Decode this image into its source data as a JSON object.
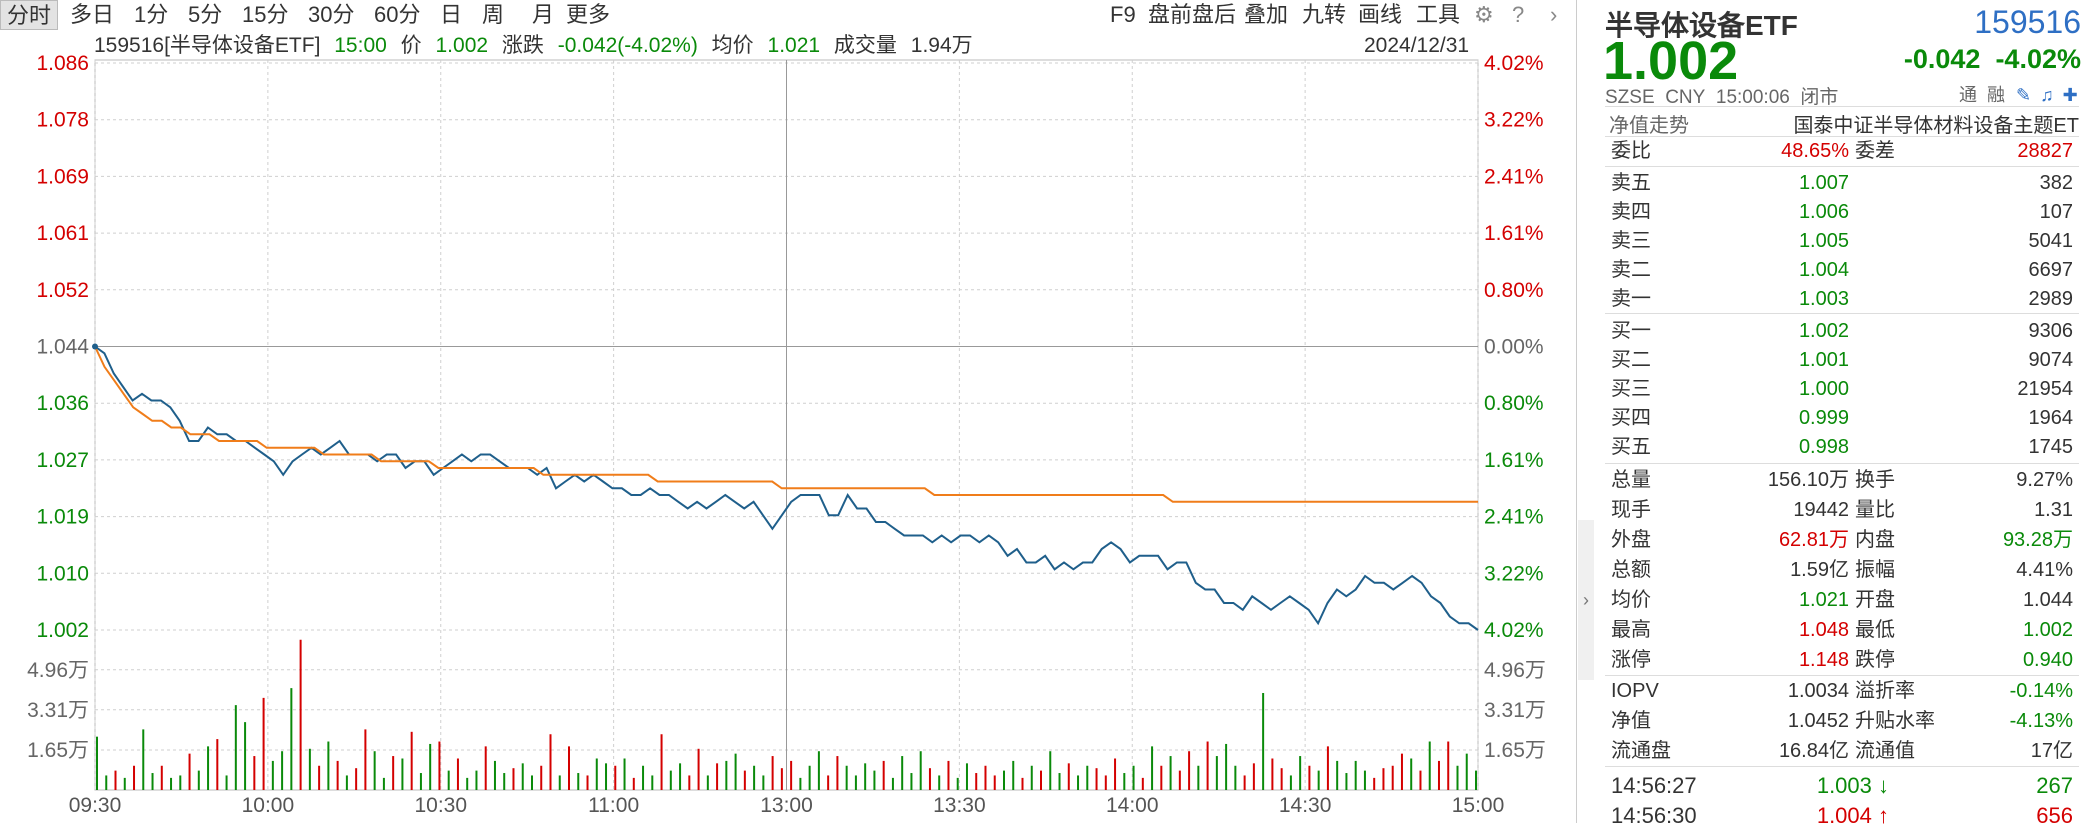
{
  "toolbar": {
    "periods": [
      "分时",
      "多日",
      "1分",
      "5分",
      "15分",
      "30分",
      "60分",
      "日",
      "周",
      "月",
      "更多"
    ],
    "active_period": "分时",
    "right_items": [
      "F9",
      "盘前盘后",
      "叠加",
      "九转",
      "画线",
      "工具"
    ],
    "icons": [
      "gear-icon",
      "help-icon",
      "chevron-right-icon"
    ]
  },
  "info": {
    "code_name": "159516[半导体设备ETF]",
    "time": "15:00",
    "price_label": "价",
    "price": "1.002",
    "change_label": "涨跌",
    "change": "-0.042(-4.02%)",
    "avg_label": "均价",
    "avg": "1.021",
    "vol_label": "成交量",
    "vol": "1.94万",
    "date": "2024/12/31"
  },
  "colors": {
    "up": "#d40000",
    "down": "#0a8a0a",
    "price_line": "#1f5f8b",
    "avg_line": "#f07d1a",
    "grid": "#cfcfcf"
  },
  "chart_data": {
    "type": "line",
    "prev_close": 1.044,
    "ylim": [
      1.002,
      1.086
    ],
    "y_ticks_left": [
      "1.086",
      "1.078",
      "1.069",
      "1.061",
      "1.052",
      "1.044",
      "1.036",
      "1.027",
      "1.019",
      "1.010",
      "1.002"
    ],
    "y_ticks_right": [
      "4.02%",
      "3.22%",
      "2.41%",
      "1.61%",
      "0.80%",
      "0.00%",
      "0.80%",
      "1.61%",
      "2.41%",
      "3.22%",
      "4.02%"
    ],
    "x_ticks": [
      "09:30",
      "10:00",
      "10:30",
      "11:00",
      "13:00",
      "13:30",
      "14:00",
      "14:30",
      "15:00"
    ],
    "vol_ticks": [
      "4.96万",
      "3.31万",
      "1.65万"
    ],
    "vol_max": 6.6,
    "series": [
      {
        "name": "价",
        "values": [
          1.044,
          1.043,
          1.04,
          1.038,
          1.036,
          1.037,
          1.036,
          1.036,
          1.035,
          1.033,
          1.03,
          1.03,
          1.032,
          1.031,
          1.031,
          1.03,
          1.03,
          1.029,
          1.028,
          1.027,
          1.025,
          1.027,
          1.028,
          1.029,
          1.028,
          1.029,
          1.03,
          1.028,
          1.028,
          1.028,
          1.027,
          1.028,
          1.028,
          1.026,
          1.027,
          1.027,
          1.025,
          1.026,
          1.027,
          1.028,
          1.027,
          1.028,
          1.028,
          1.027,
          1.026,
          1.026,
          1.026,
          1.025,
          1.026,
          1.023,
          1.024,
          1.025,
          1.024,
          1.025,
          1.024,
          1.023,
          1.023,
          1.022,
          1.022,
          1.023,
          1.022,
          1.022,
          1.021,
          1.02,
          1.021,
          1.02,
          1.021,
          1.022,
          1.021,
          1.02,
          1.021,
          1.019,
          1.017,
          1.019,
          1.021,
          1.022,
          1.022,
          1.022,
          1.019,
          1.019,
          1.022,
          1.02,
          1.02,
          1.018,
          1.018,
          1.017,
          1.016,
          1.016,
          1.016,
          1.015,
          1.016,
          1.015,
          1.016,
          1.016,
          1.015,
          1.016,
          1.015,
          1.013,
          1.014,
          1.012,
          1.012,
          1.013,
          1.011,
          1.012,
          1.011,
          1.012,
          1.012,
          1.014,
          1.015,
          1.014,
          1.012,
          1.013,
          1.013,
          1.013,
          1.011,
          1.012,
          1.012,
          1.009,
          1.008,
          1.008,
          1.006,
          1.006,
          1.005,
          1.007,
          1.006,
          1.005,
          1.006,
          1.007,
          1.006,
          1.005,
          1.003,
          1.006,
          1.008,
          1.007,
          1.008,
          1.01,
          1.009,
          1.009,
          1.008,
          1.009,
          1.01,
          1.009,
          1.007,
          1.006,
          1.004,
          1.003,
          1.003,
          1.002
        ]
      },
      {
        "name": "均价",
        "values": [
          1.044,
          1.041,
          1.039,
          1.037,
          1.035,
          1.034,
          1.033,
          1.033,
          1.032,
          1.032,
          1.031,
          1.031,
          1.031,
          1.03,
          1.03,
          1.03,
          1.03,
          1.03,
          1.029,
          1.029,
          1.029,
          1.029,
          1.029,
          1.029,
          1.028,
          1.028,
          1.028,
          1.028,
          1.028,
          1.028,
          1.027,
          1.027,
          1.027,
          1.027,
          1.027,
          1.027,
          1.026,
          1.026,
          1.026,
          1.026,
          1.026,
          1.026,
          1.026,
          1.026,
          1.026,
          1.026,
          1.026,
          1.025,
          1.025,
          1.025,
          1.025,
          1.025,
          1.025,
          1.025,
          1.025,
          1.025,
          1.025,
          1.025,
          1.025,
          1.024,
          1.024,
          1.024,
          1.024,
          1.024,
          1.024,
          1.024,
          1.024,
          1.024,
          1.024,
          1.024,
          1.024,
          1.024,
          1.023,
          1.023,
          1.023,
          1.023,
          1.023,
          1.023,
          1.023,
          1.023,
          1.023,
          1.023,
          1.023,
          1.023,
          1.023,
          1.023,
          1.023,
          1.023,
          1.022,
          1.022,
          1.022,
          1.022,
          1.022,
          1.022,
          1.022,
          1.022,
          1.022,
          1.022,
          1.022,
          1.022,
          1.022,
          1.022,
          1.022,
          1.022,
          1.022,
          1.022,
          1.022,
          1.022,
          1.022,
          1.022,
          1.022,
          1.022,
          1.022,
          1.021,
          1.021,
          1.021,
          1.021,
          1.021,
          1.021,
          1.021,
          1.021,
          1.021,
          1.021,
          1.021,
          1.021,
          1.021,
          1.021,
          1.021,
          1.021,
          1.021,
          1.021,
          1.021,
          1.021,
          1.021,
          1.021,
          1.021,
          1.021,
          1.021,
          1.021,
          1.021,
          1.021,
          1.021,
          1.021,
          1.021,
          1.021,
          1.021
        ]
      }
    ],
    "volume": [
      2.2,
      0.6,
      0.8,
      0.5,
      1.0,
      2.5,
      0.7,
      1.0,
      0.5,
      0.6,
      1.5,
      0.8,
      1.8,
      2.1,
      0.6,
      3.5,
      2.8,
      1.4,
      3.8,
      1.2,
      1.6,
      4.2,
      6.2,
      1.7,
      1.0,
      2.0,
      1.2,
      0.6,
      0.9,
      2.5,
      1.6,
      0.5,
      1.4,
      1.3,
      2.4,
      0.7,
      1.9,
      2.0,
      0.8,
      1.3,
      0.5,
      0.8,
      1.8,
      1.2,
      0.7,
      0.9,
      1.1,
      0.6,
      1.0,
      2.3,
      0.6,
      1.8,
      0.7,
      0.6,
      1.3,
      1.1,
      1.0,
      1.3,
      0.5,
      1.0,
      0.6,
      2.3,
      0.8,
      1.1,
      0.6,
      1.7,
      0.6,
      1.1,
      1.2,
      1.5,
      0.8,
      1.0,
      0.6,
      1.4,
      0.9,
      1.2,
      0.5,
      1.0,
      1.6,
      0.6,
      1.4,
      1.0,
      0.6,
      1.1,
      0.8,
      1.2,
      0.5,
      1.4,
      0.7,
      1.6,
      0.9,
      0.6,
      1.2,
      0.5,
      1.1,
      0.7,
      1.0,
      0.6,
      0.8,
      1.2,
      0.5,
      1.0,
      0.8,
      1.6,
      0.7,
      1.1,
      0.6,
      1.0,
      0.9,
      0.6,
      1.3,
      0.7,
      1.0,
      0.5,
      1.8,
      1.0,
      1.4,
      0.8,
      1.6,
      1.0,
      2.0,
      1.4,
      1.9,
      1.0,
      0.6,
      1.1,
      4.0,
      1.3,
      0.9,
      0.6,
      1.4,
      1.0,
      0.8,
      1.8,
      1.2,
      0.7,
      1.2,
      0.8,
      0.5,
      0.9,
      1.0,
      1.5,
      1.3,
      0.8,
      2.0,
      1.2,
      2.0,
      1.0,
      1.5,
      0.8
    ],
    "volume_up": [
      false,
      false,
      true,
      false,
      true,
      false,
      false,
      true,
      false,
      false,
      true,
      false,
      false,
      true,
      false,
      false,
      false,
      true,
      true,
      false,
      false,
      false,
      true,
      false,
      true,
      false,
      true,
      false,
      true,
      true,
      false,
      false,
      true,
      false,
      true,
      false,
      false,
      true,
      false,
      true,
      false,
      false,
      true,
      false,
      false,
      true,
      false,
      false,
      true,
      true,
      false,
      true,
      false,
      true,
      false,
      false,
      true,
      false,
      true,
      false,
      false,
      true,
      false,
      false,
      true,
      true,
      false,
      true,
      false,
      false,
      true,
      false,
      false,
      true,
      true,
      true,
      false,
      false,
      false,
      true,
      true,
      false,
      false,
      false,
      false,
      true,
      false,
      false,
      false,
      false,
      true,
      false,
      true,
      false,
      false,
      true,
      true,
      true,
      false,
      false,
      true,
      false,
      true,
      false,
      false,
      true,
      false,
      false,
      true,
      true,
      true,
      false,
      false,
      true,
      false,
      true,
      false,
      true,
      true,
      false,
      true,
      false,
      false,
      false,
      true,
      true,
      false,
      true,
      true,
      false,
      false,
      true,
      false,
      true,
      false,
      false,
      false,
      false,
      true,
      true,
      true,
      true,
      false,
      true,
      false,
      true,
      true
    ]
  },
  "panel": {
    "name": "半导体设备ETF",
    "code": "159516",
    "price": "1.002",
    "change": "-0.042",
    "change_pct": "-4.02%",
    "exchange": "SZSE",
    "currency": "CNY",
    "time": "15:00:06",
    "status": "闭市",
    "tags": [
      "通",
      "融"
    ],
    "nav_trend_label": "净值走势",
    "fund_full_name": "国泰中证半导体材料设备主题ET",
    "weibi_label": "委比",
    "weibi": "48.65%",
    "weicha_label": "委差",
    "weicha": "28827",
    "asks": [
      {
        "label": "卖五",
        "price": "1.007",
        "vol": "382"
      },
      {
        "label": "卖四",
        "price": "1.006",
        "vol": "107"
      },
      {
        "label": "卖三",
        "price": "1.005",
        "vol": "5041"
      },
      {
        "label": "卖二",
        "price": "1.004",
        "vol": "6697"
      },
      {
        "label": "卖一",
        "price": "1.003",
        "vol": "2989"
      }
    ],
    "bids": [
      {
        "label": "买一",
        "price": "1.002",
        "vol": "9306"
      },
      {
        "label": "买二",
        "price": "1.001",
        "vol": "9074"
      },
      {
        "label": "买三",
        "price": "1.000",
        "vol": "21954"
      },
      {
        "label": "买四",
        "price": "0.999",
        "vol": "1964"
      },
      {
        "label": "买五",
        "price": "0.998",
        "vol": "1745"
      }
    ],
    "stats": [
      {
        "l1": "总量",
        "v1": "156.10万",
        "c1": "",
        "l2": "换手",
        "v2": "9.27%",
        "c2": ""
      },
      {
        "l1": "现手",
        "v1": "19442",
        "c1": "",
        "l2": "量比",
        "v2": "1.31",
        "c2": ""
      },
      {
        "l1": "外盘",
        "v1": "62.81万",
        "c1": "red",
        "l2": "内盘",
        "v2": "93.28万",
        "c2": "green"
      },
      {
        "l1": "总额",
        "v1": "1.59亿",
        "c1": "",
        "l2": "振幅",
        "v2": "4.41%",
        "c2": ""
      },
      {
        "l1": "均价",
        "v1": "1.021",
        "c1": "green",
        "l2": "开盘",
        "v2": "1.044",
        "c2": ""
      },
      {
        "l1": "最高",
        "v1": "1.048",
        "c1": "red",
        "l2": "最低",
        "v2": "1.002",
        "c2": "green"
      },
      {
        "l1": "涨停",
        "v1": "1.148",
        "c1": "red",
        "l2": "跌停",
        "v2": "0.940",
        "c2": "green"
      }
    ],
    "fund_stats": [
      {
        "l1": "IOPV",
        "v1": "1.0034",
        "c1": "",
        "l2": "溢折率",
        "v2": "-0.14%",
        "c2": "green"
      },
      {
        "l1": "净值",
        "v1": "1.0452",
        "c1": "",
        "l2": "升贴水率",
        "v2": "-4.13%",
        "c2": "green"
      },
      {
        "l1": "流通盘",
        "v1": "16.84亿",
        "c1": "",
        "l2": "流通值",
        "v2": "17亿",
        "c2": ""
      }
    ],
    "ticks": [
      {
        "time": "14:56:27",
        "price": "1.003",
        "dir": "down",
        "vol": "267"
      },
      {
        "time": "14:56:30",
        "price": "1.004",
        "dir": "up",
        "vol": "656"
      }
    ]
  }
}
